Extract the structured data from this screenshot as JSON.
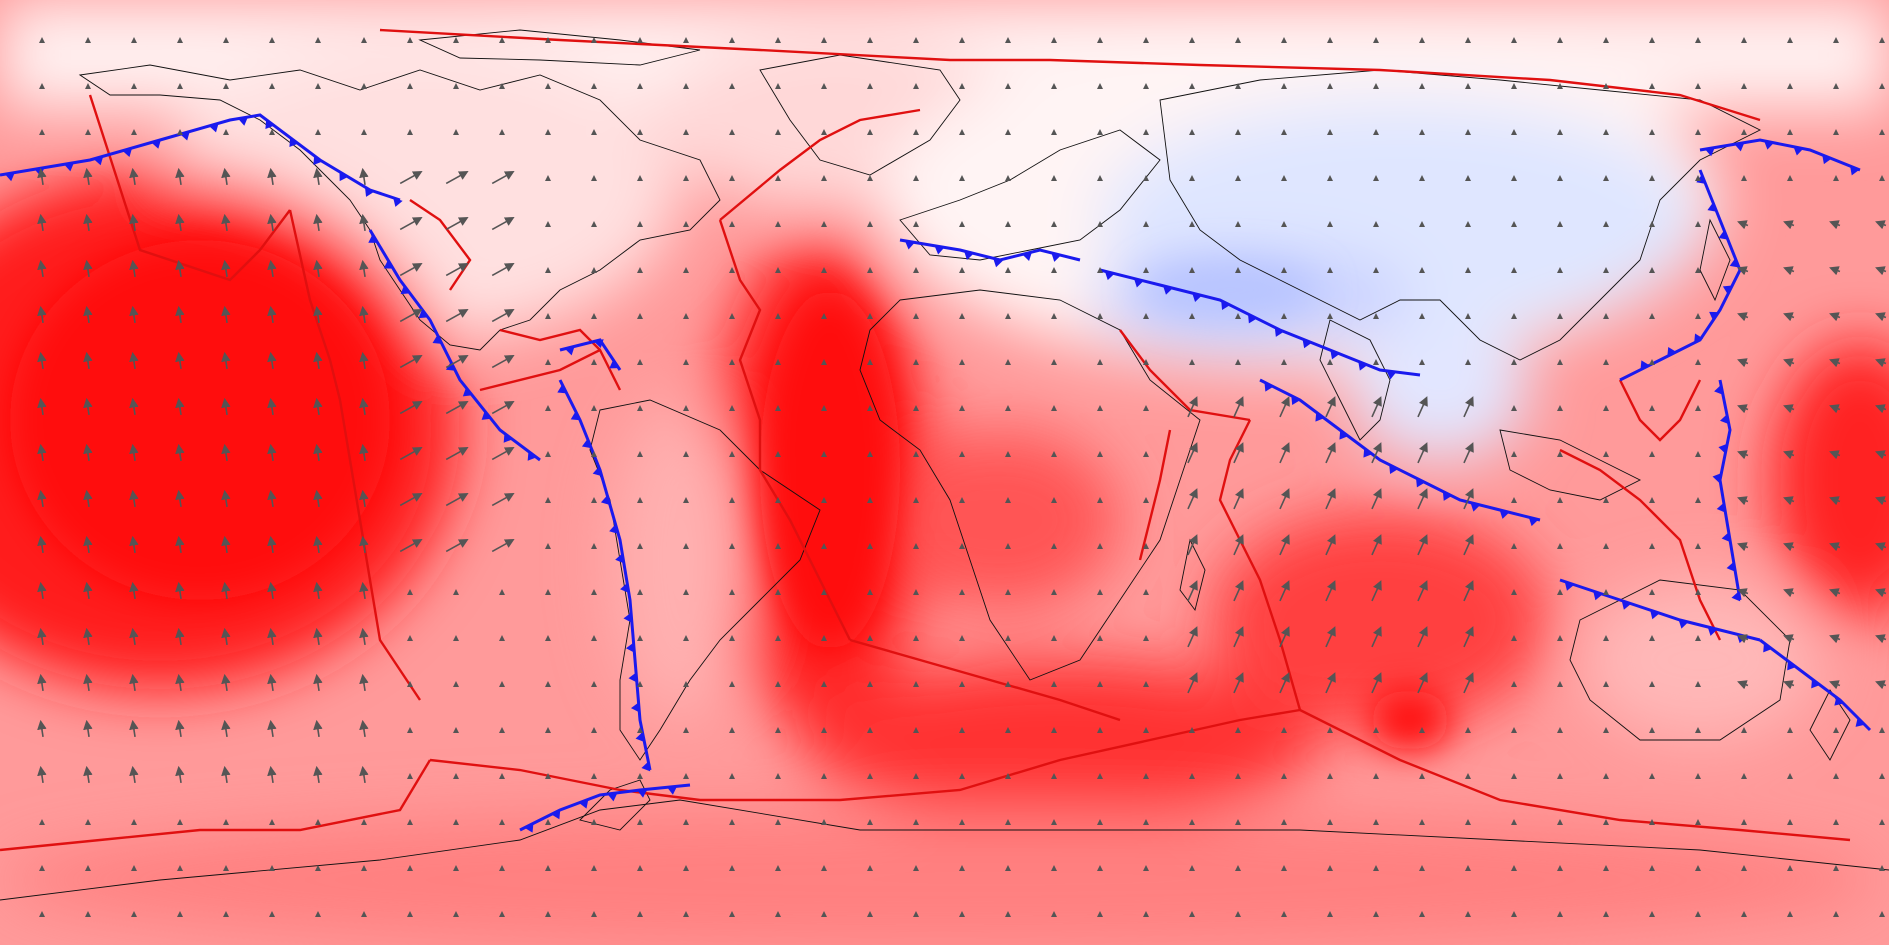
{
  "map": {
    "projection": "equirectangular",
    "extent": {
      "lon": [
        -180,
        180
      ],
      "lat": [
        -90,
        90
      ]
    },
    "colors": {
      "ocean_base": "#ff9a9a",
      "strong_red": "#ff1a1a",
      "mid_red": "#ff5050",
      "light_red": "#ffc4c4",
      "pale": "#fff0f0",
      "blue_region": "#dde4ff",
      "blue_strong": "#b8c4ff",
      "ridge_line": "#e01010",
      "subduction_line": "#1a1aee",
      "coastline": "#111111",
      "arrow": "#555555"
    },
    "layers": [
      "velocity-field",
      "coastlines",
      "plate-boundaries",
      "subduction-zones",
      "velocity-arrows"
    ],
    "legend_visible": false,
    "grid_visible": false
  }
}
